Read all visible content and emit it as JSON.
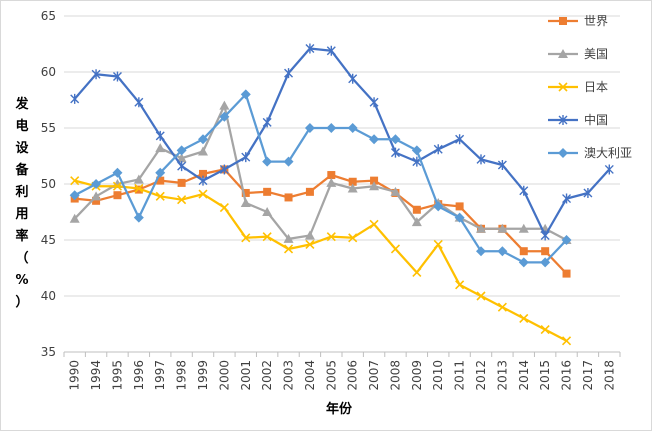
{
  "chart_data": {
    "type": "line",
    "title": "",
    "xlabel": "年份",
    "ylabel": "发电设备利用率（%）",
    "ylim": [
      35,
      65
    ],
    "yticks": [
      35,
      40,
      45,
      50,
      55,
      60,
      65
    ],
    "categories": [
      "1990",
      "1994",
      "1995",
      "1996",
      "1997",
      "1998",
      "1999",
      "2000",
      "2001",
      "2002",
      "2003",
      "2004",
      "2005",
      "2006",
      "2007",
      "2008",
      "2009",
      "2010",
      "2011",
      "2012",
      "2013",
      "2014",
      "2015",
      "2016",
      "2017",
      "2018"
    ],
    "grid": true,
    "legend_position": "right",
    "series": [
      {
        "name": "世界",
        "color": "#ED7D31",
        "marker": "square",
        "values": [
          48.7,
          48.5,
          49.0,
          49.5,
          50.3,
          50.1,
          50.9,
          51.3,
          49.2,
          49.3,
          48.8,
          49.3,
          50.8,
          50.2,
          50.3,
          49.2,
          47.7,
          48.2,
          48.0,
          46.0,
          46.0,
          44.0,
          44.0,
          42.0,
          null,
          null
        ]
      },
      {
        "name": "美国",
        "color": "#A5A5A5",
        "marker": "triangle",
        "values": [
          46.9,
          48.9,
          50.0,
          50.4,
          53.2,
          52.3,
          52.9,
          57.0,
          48.3,
          47.5,
          45.1,
          45.4,
          50.1,
          49.6,
          49.8,
          49.3,
          46.6,
          48.3,
          47.0,
          46.0,
          46.0,
          46.0,
          46.0,
          45.0,
          null,
          null
        ]
      },
      {
        "name": "日本",
        "color": "#FFC000",
        "marker": "x",
        "values": [
          50.3,
          49.8,
          49.8,
          49.6,
          48.9,
          48.6,
          49.1,
          47.9,
          45.2,
          45.3,
          44.2,
          44.6,
          45.3,
          45.2,
          46.4,
          44.2,
          42.1,
          44.6,
          41.0,
          40.0,
          39.0,
          38.0,
          37.0,
          36.0,
          null,
          null
        ]
      },
      {
        "name": "中国",
        "color": "#4472C4",
        "marker": "star",
        "values": [
          57.6,
          59.8,
          59.6,
          57.3,
          54.3,
          51.6,
          50.3,
          51.3,
          52.4,
          55.5,
          59.9,
          62.1,
          61.9,
          59.4,
          57.3,
          52.8,
          52.0,
          53.1,
          54.0,
          52.2,
          51.7,
          49.4,
          45.4,
          48.7,
          49.2,
          51.3
        ]
      },
      {
        "name": "澳大利亚",
        "color": "#5B9BD5",
        "marker": "diamond",
        "values": [
          49.0,
          50.0,
          51.0,
          47.0,
          51.0,
          53.0,
          54.0,
          56.0,
          58.0,
          52.0,
          52.0,
          55.0,
          55.0,
          55.0,
          54.0,
          54.0,
          53.0,
          48.0,
          47.0,
          44.0,
          44.0,
          43.0,
          43.0,
          45.0,
          null,
          null
        ]
      }
    ]
  }
}
